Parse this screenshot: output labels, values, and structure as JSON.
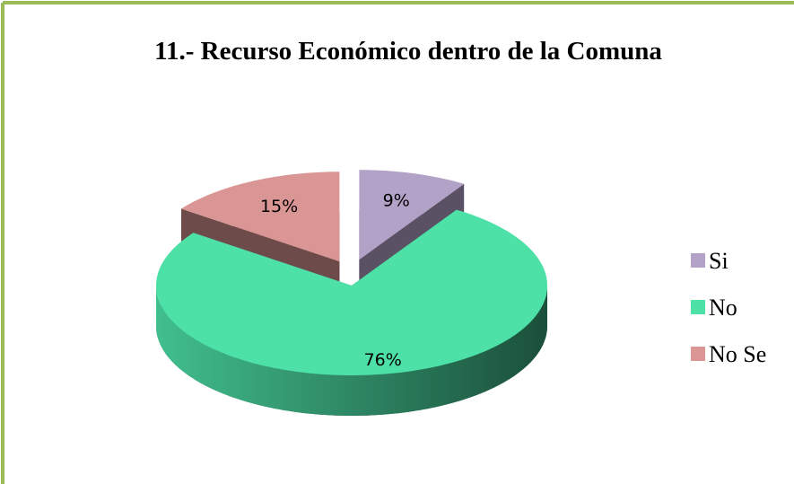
{
  "chart_data": {
    "type": "pie",
    "title": "11.- Recurso Económico dentro de la Comuna",
    "categories": [
      "Si",
      "No",
      "No Se"
    ],
    "values": [
      9,
      76,
      15
    ],
    "value_labels": [
      "9%",
      "76%",
      "15%"
    ],
    "colors": [
      "#b3a2c7",
      "#4de1a7",
      "#d99694"
    ],
    "legend": "right"
  }
}
